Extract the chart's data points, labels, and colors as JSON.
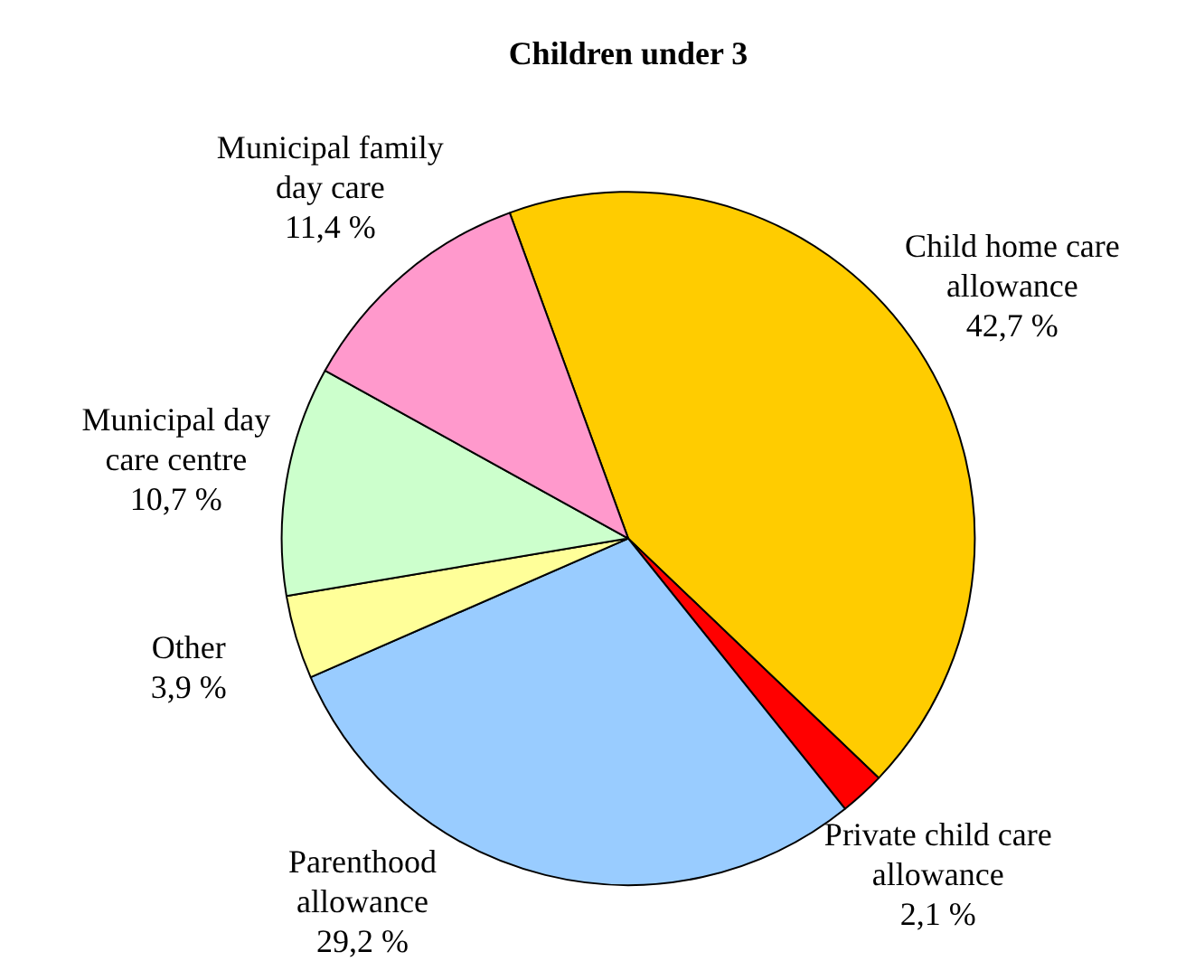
{
  "chart_data": {
    "type": "pie",
    "title": "Children under 3",
    "categories": [
      "Child home care allowance",
      "Private child care allowance",
      "Parenthood allowance",
      "Other",
      "Municipal day care centre",
      "Municipal family day care"
    ],
    "values": [
      42.7,
      2.1,
      29.2,
      3.9,
      10.7,
      11.4
    ],
    "value_labels": [
      "42,7 %",
      "2,1 %",
      "29,2 %",
      "3,9 %",
      "10,7 %",
      "11,4 %"
    ],
    "colors": [
      "#ffcc00",
      "#ff0000",
      "#99ccff",
      "#ffff99",
      "#ccffcc",
      "#ff99cc"
    ],
    "legend": false
  }
}
